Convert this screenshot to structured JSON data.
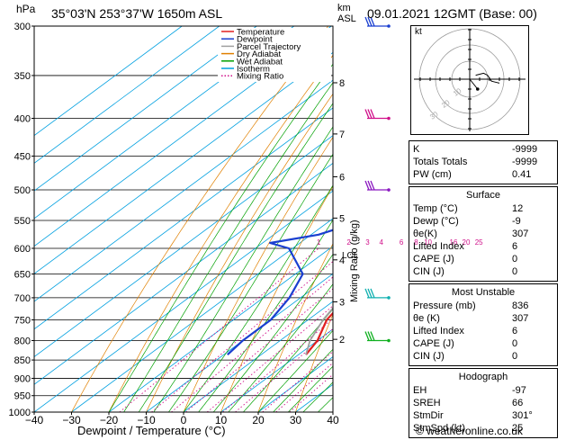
{
  "header": {
    "location": "35°03'N  253°37'W  1650m  ASL",
    "datetime": "09.01.2021  12GMT  (Base: 00)",
    "pressure_unit": "hPa",
    "altitude_unit_km": "km",
    "altitude_unit_asl": "ASL",
    "x_axis_label": "Dewpoint / Temperature (°C)",
    "right_axis_label": "Mixing Ratio (g/kg)",
    "copyright": "© weatheronline.co.uk"
  },
  "legend": [
    {
      "label": "Temperature",
      "color": "#e02020"
    },
    {
      "label": "Dewpoint",
      "color": "#1a3fd0"
    },
    {
      "label": "Parcel Trajectory",
      "color": "#a0a0a0"
    },
    {
      "label": "Dry Adiabat",
      "color": "#e08000"
    },
    {
      "label": "Wet Adiabat",
      "color": "#00a000"
    },
    {
      "label": "Isotherm",
      "color": "#00a0e0"
    },
    {
      "label": "Mixing Ratio",
      "color": "#d0108a"
    }
  ],
  "chart_data": {
    "type": "line",
    "x_range": [
      -40,
      40
    ],
    "x_ticks": [
      -40,
      -30,
      -20,
      -10,
      0,
      10,
      20,
      30,
      40
    ],
    "pressure_range": [
      300,
      1000
    ],
    "pressure_ticks": [
      300,
      350,
      400,
      450,
      500,
      550,
      600,
      650,
      700,
      750,
      800,
      850,
      900,
      950,
      1000
    ],
    "km_ticks": [
      {
        "label": "8",
        "p": 358
      },
      {
        "label": "7",
        "p": 420
      },
      {
        "label": "6",
        "p": 480
      },
      {
        "label": "5",
        "p": 546
      },
      {
        "label": "4",
        "p": 622
      },
      {
        "label": "3",
        "p": 709
      },
      {
        "label": "2",
        "p": 797
      }
    ],
    "lcl": {
      "label": "LCL",
      "p": 612
    },
    "mixing_ratio_labels": [
      "1",
      "2",
      "3",
      "4",
      "6",
      "8",
      "10",
      "16",
      "20",
      "25"
    ],
    "series": [
      {
        "name": "Temperature",
        "points": [
          [
            836,
            12
          ],
          [
            800,
            10
          ],
          [
            750,
            5
          ],
          [
            700,
            2.5
          ],
          [
            650,
            -1
          ],
          [
            600,
            -4
          ],
          [
            550,
            -6.5
          ],
          [
            500,
            -10
          ],
          [
            450,
            -16
          ],
          [
            400,
            -21
          ],
          [
            350,
            -25
          ],
          [
            300,
            -29
          ]
        ]
      },
      {
        "name": "Dewpoint",
        "points": [
          [
            836,
            -9
          ],
          [
            800,
            -10
          ],
          [
            750,
            -10
          ],
          [
            700,
            -13
          ],
          [
            650,
            -18
          ],
          [
            600,
            -31
          ],
          [
            590,
            -38
          ],
          [
            575,
            -28
          ],
          [
            560,
            -24
          ],
          [
            545,
            -3
          ],
          [
            525,
            0
          ],
          [
            500,
            -9
          ],
          [
            480,
            -16
          ],
          [
            430,
            -12
          ],
          [
            410,
            -33
          ],
          [
            370,
            -38
          ],
          [
            340,
            -42
          ]
        ]
      },
      {
        "name": "Parcel Trajectory",
        "points": [
          [
            836,
            12
          ],
          [
            800,
            8
          ],
          [
            750,
            4
          ],
          [
            700,
            1
          ],
          [
            650,
            -3
          ],
          [
            612,
            -6
          ],
          [
            600,
            -7
          ],
          [
            550,
            -12
          ],
          [
            500,
            -17
          ],
          [
            450,
            -23
          ],
          [
            400,
            -30
          ],
          [
            350,
            -37
          ],
          [
            300,
            -45
          ]
        ]
      }
    ],
    "wind_barbs": [
      {
        "p": 300,
        "color": "#1a3fd0"
      },
      {
        "p": 400,
        "color": "#d0108a"
      },
      {
        "p": 500,
        "color": "#8a18c0"
      },
      {
        "p": 700,
        "color": "#10b0b0"
      },
      {
        "p": 800,
        "color": "#10b020"
      }
    ]
  },
  "hodograph": {
    "unit": "kt",
    "ring_labels": [
      "10",
      "20",
      "30"
    ],
    "trace": [
      [
        46,
        44
      ],
      [
        54,
        42
      ],
      [
        58,
        44
      ],
      [
        62,
        50
      ],
      [
        66,
        51
      ],
      [
        70,
        52
      ]
    ],
    "storm_motion": [
      48,
      58
    ]
  },
  "indices": {
    "top": [
      {
        "label": "K",
        "value": "-9999"
      },
      {
        "label": "Totals Totals",
        "value": "-9999"
      },
      {
        "label": "PW (cm)",
        "value": "0.41"
      }
    ],
    "surface": {
      "title": "Surface",
      "rows": [
        {
          "label": "Temp (°C)",
          "value": "12"
        },
        {
          "label": "Dewp (°C)",
          "value": "-9"
        },
        {
          "label": "θe(K)",
          "value": "307"
        },
        {
          "label": "Lifted Index",
          "value": "6"
        },
        {
          "label": "CAPE (J)",
          "value": "0"
        },
        {
          "label": "CIN (J)",
          "value": "0"
        }
      ]
    },
    "most_unstable": {
      "title": "Most Unstable",
      "rows": [
        {
          "label": "Pressure (mb)",
          "value": "836"
        },
        {
          "label": "θe (K)",
          "value": "307"
        },
        {
          "label": "Lifted Index",
          "value": "6"
        },
        {
          "label": "CAPE (J)",
          "value": "0"
        },
        {
          "label": "CIN (J)",
          "value": "0"
        }
      ]
    },
    "hodograph": {
      "title": "Hodograph",
      "rows": [
        {
          "label": "EH",
          "value": "-97"
        },
        {
          "label": "SREH",
          "value": "66"
        },
        {
          "label": "StmDir",
          "value": "301°"
        },
        {
          "label": "StmSpd (kt)",
          "value": "25"
        }
      ]
    }
  }
}
